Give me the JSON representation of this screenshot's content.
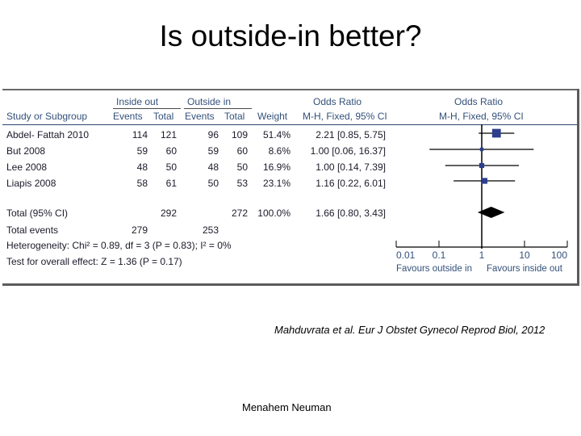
{
  "title": "Is outside-in better?",
  "header": {
    "group1": "Inside out",
    "group2": "Outside in",
    "study": "Study or Subgroup",
    "events1": "Events",
    "total1": "Total",
    "events2": "Events",
    "total2": "Total",
    "weight": "Weight",
    "or_title": "Odds Ratio",
    "or_method": "M-H, Fixed, 95% CI",
    "plot_title": "Odds Ratio",
    "plot_method": "M-H, Fixed, 95% CI"
  },
  "studies": [
    {
      "name": "Abdel- Fattah 2010",
      "e1": "114",
      "t1": "121",
      "e2": "96",
      "t2": "109",
      "weight": "51.4%",
      "ci": "2.21 [0.85, 5.75]"
    },
    {
      "name": "But 2008",
      "e1": "59",
      "t1": "60",
      "e2": "59",
      "t2": "60",
      "weight": "8.6%",
      "ci": "1.00 [0.06, 16.37]"
    },
    {
      "name": "Lee 2008",
      "e1": "48",
      "t1": "50",
      "e2": "48",
      "t2": "50",
      "weight": "16.9%",
      "ci": "1.00 [0.14, 7.39]"
    },
    {
      "name": "Liapis 2008",
      "e1": "58",
      "t1": "61",
      "e2": "50",
      "t2": "53",
      "weight": "23.1%",
      "ci": "1.16 [0.22, 6.01]"
    }
  ],
  "total": {
    "label": "Total (95% CI)",
    "t1": "292",
    "t2": "272",
    "weight": "100.0%",
    "ci": "1.66 [0.80, 3.43]"
  },
  "total_events": {
    "label": "Total events",
    "e1": "279",
    "e2": "253"
  },
  "heterogeneity": "Heterogeneity: Chi² = 0.89, df = 3 (P = 0.83); I² = 0%",
  "overall_effect": "Test for overall effect: Z = 1.36 (P = 0.17)",
  "citation": "Mahduvrata et al. Eur J Obstet Gynecol Reprod Biol, 2012",
  "footer": "Menahem Neuman",
  "colors": {
    "marker": "#2c3e8c",
    "line": "#000000",
    "header_text": "#33507a"
  },
  "chart_data": {
    "type": "forest",
    "x_scale": "log",
    "xlim": [
      0.01,
      100
    ],
    "ticks": [
      0.01,
      0.1,
      1,
      10,
      100
    ],
    "tick_labels": [
      "0.01",
      "0.1",
      "1",
      "10",
      "100"
    ],
    "left_label": "Favours outside in",
    "right_label": "Favours inside out",
    "studies": [
      {
        "name": "Abdel- Fattah 2010",
        "or": 2.21,
        "lo": 0.85,
        "hi": 5.75,
        "weight": 51.4
      },
      {
        "name": "But 2008",
        "or": 1.0,
        "lo": 0.06,
        "hi": 16.37,
        "weight": 8.6
      },
      {
        "name": "Lee 2008",
        "or": 1.0,
        "lo": 0.14,
        "hi": 7.39,
        "weight": 16.9
      },
      {
        "name": "Liapis 2008",
        "or": 1.16,
        "lo": 0.22,
        "hi": 6.01,
        "weight": 23.1
      }
    ],
    "pooled": {
      "or": 1.66,
      "lo": 0.8,
      "hi": 3.43
    }
  }
}
